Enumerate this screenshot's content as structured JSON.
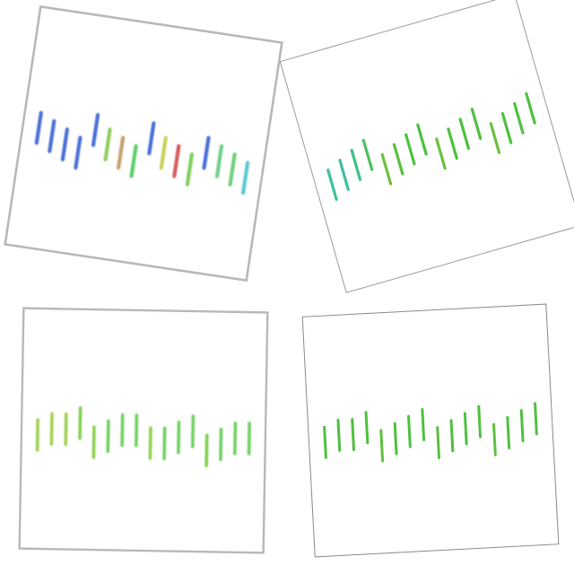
{
  "panels": [
    {
      "name": "top-left",
      "border": "#b8b8b8",
      "bars": [
        {
          "color": "#4a6fd6",
          "offset": 0
        },
        {
          "color": "#4a6fd6",
          "offset": 1
        },
        {
          "color": "#4a6fd6",
          "offset": 2
        },
        {
          "color": "#4a6fd6",
          "offset": 3
        },
        {
          "color": "#4a6fd6",
          "offset": -1
        },
        {
          "color": "#8fcf5a",
          "offset": 1
        },
        {
          "color": "#c8a070",
          "offset": 2
        },
        {
          "color": "#5fcf6a",
          "offset": 3
        },
        {
          "color": "#4a6fd6",
          "offset": -1
        },
        {
          "color": "#c8d25a",
          "offset": 1
        },
        {
          "color": "#d65a5a",
          "offset": 2
        },
        {
          "color": "#7fcf5a",
          "offset": 3
        },
        {
          "color": "#4a6fd6",
          "offset": 0
        },
        {
          "color": "#6fcf8a",
          "offset": 1
        },
        {
          "color": "#6fcf7a",
          "offset": 2
        },
        {
          "color": "#5ac8d2",
          "offset": 3
        }
      ]
    },
    {
      "name": "top-right",
      "border": "#9a9a9a",
      "bars": [
        {
          "color": "#3fbfa0",
          "offset": 2
        },
        {
          "color": "#3fbfa0",
          "offset": 1
        },
        {
          "color": "#3fbf8a",
          "offset": 0
        },
        {
          "color": "#4fc060",
          "offset": -1
        },
        {
          "color": "#6fc040",
          "offset": 2
        },
        {
          "color": "#5ac040",
          "offset": 1
        },
        {
          "color": "#4fc040",
          "offset": 0
        },
        {
          "color": "#4fc040",
          "offset": -1
        },
        {
          "color": "#6fc040",
          "offset": 2
        },
        {
          "color": "#4fc040",
          "offset": 1
        },
        {
          "color": "#4fc040",
          "offset": 0
        },
        {
          "color": "#4fc040",
          "offset": -1
        },
        {
          "color": "#6fc040",
          "offset": 2
        },
        {
          "color": "#4fc040",
          "offset": 1
        },
        {
          "color": "#4fc040",
          "offset": 0
        },
        {
          "color": "#4fc040",
          "offset": -1
        }
      ]
    },
    {
      "name": "bottom-left",
      "border": "#b8b8b8",
      "bars": [
        {
          "color": "#9fd050",
          "offset": 1
        },
        {
          "color": "#a8d050",
          "offset": 0
        },
        {
          "color": "#9fd050",
          "offset": 0
        },
        {
          "color": "#7fd050",
          "offset": -1
        },
        {
          "color": "#8fd050",
          "offset": 2
        },
        {
          "color": "#6fd060",
          "offset": 1
        },
        {
          "color": "#6fd060",
          "offset": 0
        },
        {
          "color": "#6fd060",
          "offset": 0
        },
        {
          "color": "#8fd050",
          "offset": 2
        },
        {
          "color": "#6fd060",
          "offset": 2
        },
        {
          "color": "#6fd060",
          "offset": 1
        },
        {
          "color": "#6fd060",
          "offset": 0
        },
        {
          "color": "#7fd050",
          "offset": 3
        },
        {
          "color": "#6fd060",
          "offset": 2
        },
        {
          "color": "#6fd060",
          "offset": 1
        },
        {
          "color": "#6fd060",
          "offset": 1
        }
      ]
    },
    {
      "name": "bottom-right",
      "border": "#8a8a8a",
      "bars": [
        {
          "color": "#4fc040",
          "offset": 1
        },
        {
          "color": "#4fc040",
          "offset": 0
        },
        {
          "color": "#4fc040",
          "offset": 0
        },
        {
          "color": "#4fc040",
          "offset": -1
        },
        {
          "color": "#5fc040",
          "offset": 2
        },
        {
          "color": "#4fc040",
          "offset": 1
        },
        {
          "color": "#4fc040",
          "offset": 0
        },
        {
          "color": "#4fc040",
          "offset": -1
        },
        {
          "color": "#5fc040",
          "offset": 2
        },
        {
          "color": "#4fc040",
          "offset": 1
        },
        {
          "color": "#4fc040",
          "offset": 0
        },
        {
          "color": "#4fc040",
          "offset": -1
        },
        {
          "color": "#5fc040",
          "offset": 2
        },
        {
          "color": "#4fc040",
          "offset": 1
        },
        {
          "color": "#4fc040",
          "offset": 0
        },
        {
          "color": "#4fc040",
          "offset": -1
        }
      ]
    }
  ]
}
